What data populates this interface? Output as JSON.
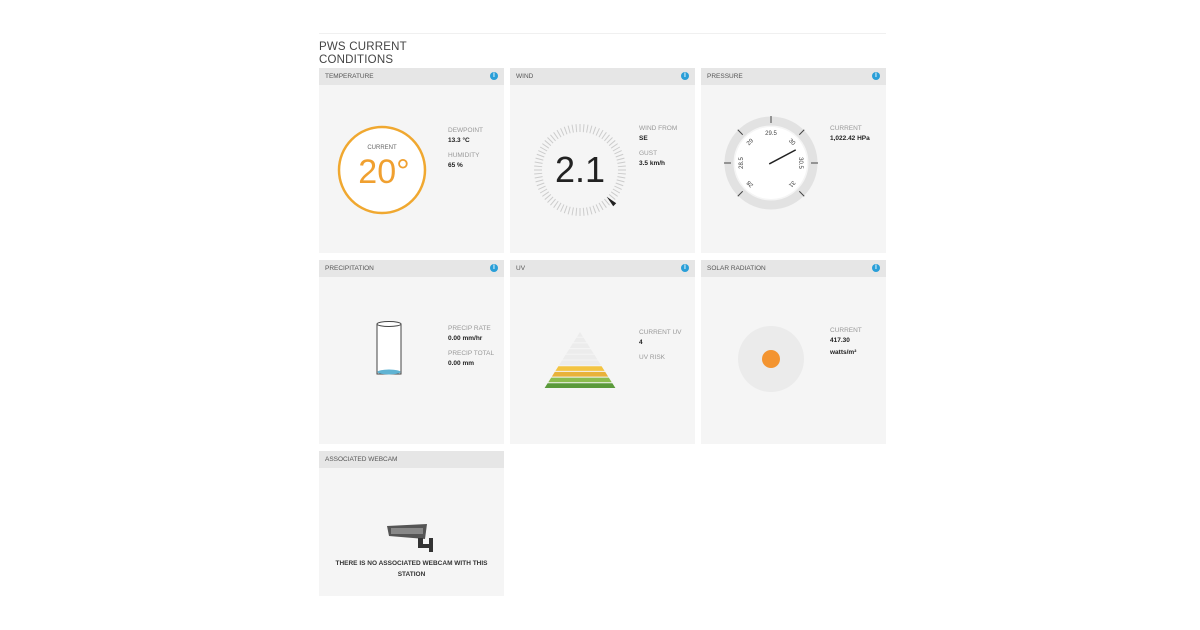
{
  "page_title": "PWS CURRENT CONDITIONS",
  "temperature": {
    "title": "TEMPERATURE",
    "current_label": "CURRENT",
    "current_value": "20°",
    "dewpoint_label": "DEWPOINT",
    "dewpoint": "13.3 °C",
    "humidity_label": "HUMIDITY",
    "humidity": "65 %",
    "accent": "#f0a030"
  },
  "wind": {
    "title": "WIND",
    "speed": "2.1",
    "from_label": "WIND FROM",
    "from": "SE",
    "gust_label": "GUST",
    "gust": "3.5 km/h"
  },
  "pressure": {
    "title": "PRESSURE",
    "current_label": "CURRENT",
    "current": "1,022.42 HPa",
    "gauge_ticks": [
      "28",
      "28.5",
      "29",
      "29.5",
      "30",
      "30.5",
      "31"
    ],
    "gauge_value_inhg": 30.19
  },
  "precipitation": {
    "title": "PRECIPITATION",
    "rate_label": "PRECIP RATE",
    "rate": "0.00 mm/hr",
    "total_label": "PRECIP TOTAL",
    "total": "0.00 mm"
  },
  "uv": {
    "title": "UV",
    "current_label": "CURRENT UV",
    "current": "4",
    "risk_label": "UV RISK",
    "colors": [
      "#f3c442",
      "#e8b23a",
      "#8bbd4e",
      "#5a9a3a"
    ]
  },
  "solar": {
    "title": "SOLAR RADIATION",
    "current_label": "CURRENT",
    "current": "417.30",
    "unit": "watts/m²",
    "color": "#f39430"
  },
  "webcam": {
    "title": "ASSOCIATED WEBCAM",
    "message": "THERE IS NO ASSOCIATED WEBCAM WITH THIS STATION"
  },
  "info_icon": "i"
}
